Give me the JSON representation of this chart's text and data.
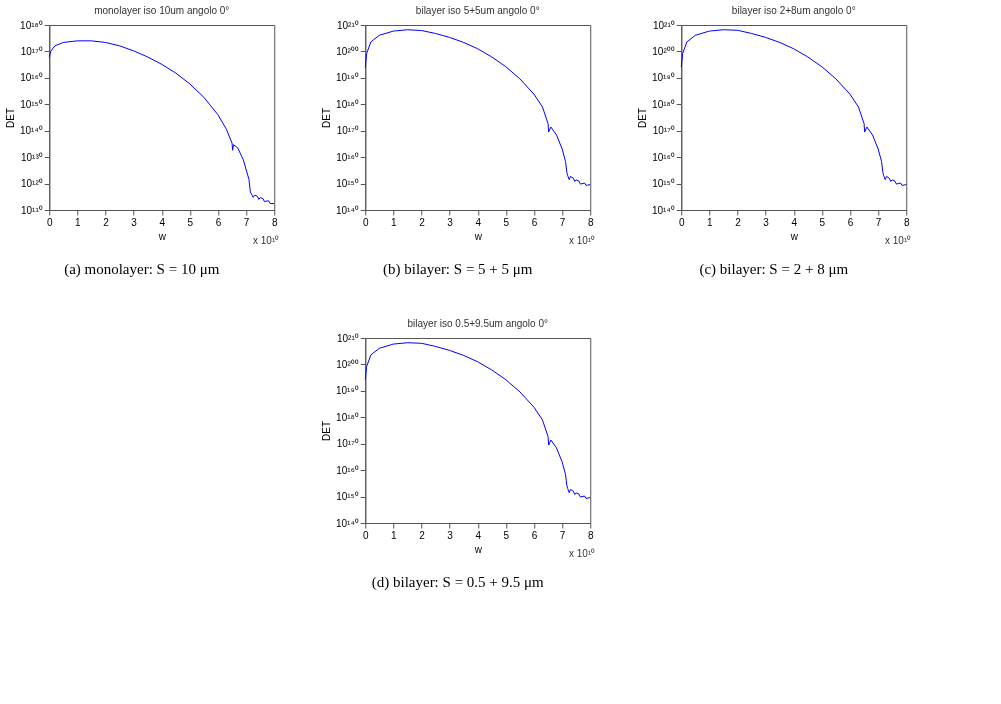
{
  "chart_data": [
    {
      "type": "line",
      "title": "monolayer iso 10um angolo 0°",
      "xlabel": "w",
      "ylabel": "DET",
      "log": "y",
      "grid": false,
      "xlim": [
        0,
        8
      ],
      "xticks": [
        0,
        1,
        2,
        3,
        4,
        5,
        6,
        7,
        8
      ],
      "ylim": [
        1e+110,
        1e+180
      ],
      "yticks": [
        {
          "value": 1e+110,
          "label": "10¹¹⁰"
        },
        {
          "value": 1e+120,
          "label": "10¹²⁰"
        },
        {
          "value": 1e+130,
          "label": "10¹³⁰"
        },
        {
          "value": 1e+140,
          "label": "10¹⁴⁰"
        },
        {
          "value": 1e+150,
          "label": "10¹⁵⁰"
        },
        {
          "value": 1e+160,
          "label": "10¹⁶⁰"
        },
        {
          "value": 1e+170,
          "label": "10¹⁷⁰"
        },
        {
          "value": 1e+180,
          "label": "10¹⁸⁰"
        }
      ],
      "annotations": [
        "x 10¹⁰",
        "(a) monolayer: S = 10 μm"
      ],
      "series": [
        {
          "color": "#0000ff",
          "x": [
            0,
            0.05,
            0.2,
            0.5,
            1,
            1.5,
            2,
            2.5,
            3,
            3.5,
            4,
            4.5,
            5,
            5.5,
            6,
            6.3,
            6.5,
            6.52,
            6.55,
            6.7,
            6.9,
            7.1,
            7.15,
            7.2,
            7.25,
            7.3,
            7.4,
            7.45,
            7.5,
            7.6,
            7.65,
            7.8,
            7.85,
            8
          ],
          "values": [
            5e+167,
            1e+170,
            1.3e+172,
            2.5e+173,
            1e+174,
            1e+174,
            2.5e+173,
            1.3e+172,
            1.6e+170,
            8e+167,
            1.3e+165,
            6.3e+161,
            5e+157,
            4e+152,
            1e+146,
            3.2e+140,
            2e+135,
            4e+132,
            5e+134,
            3.2e+133,
            1e+129,
            4e+121,
            6.3e+116,
            6.3e+115,
            6.3e+114,
            4e+115,
            1.6e+115,
            1e+114,
            5e+114,
            2e+114,
            1.6e+113,
            3.2e+113,
            3.2e+112,
            2.5e+112
          ]
        }
      ]
    },
    {
      "type": "line",
      "title": "bilayer iso 5+5um angolo 0°",
      "xlabel": "w",
      "ylabel": "DET",
      "log": "y",
      "grid": false,
      "xlim": [
        0,
        8
      ],
      "xticks": [
        0,
        1,
        2,
        3,
        4,
        5,
        6,
        7,
        8
      ],
      "ylim": [
        1e+140,
        1e+210
      ],
      "yticks": [
        {
          "value": 1e+140,
          "label": "10¹⁴⁰"
        },
        {
          "value": 1e+150,
          "label": "10¹⁵⁰"
        },
        {
          "value": 1e+160,
          "label": "10¹⁶⁰"
        },
        {
          "value": 1e+170,
          "label": "10¹⁷⁰"
        },
        {
          "value": 1e+180,
          "label": "10¹⁸⁰"
        },
        {
          "value": 1e+190,
          "label": "10¹⁹⁰"
        },
        {
          "value": 1e+200,
          "label": "10²⁰⁰"
        },
        {
          "value": 1e+210,
          "label": "10²¹⁰"
        }
      ],
      "annotations": [
        "x 10¹⁰",
        "(b) bilayer: S = 5 + 5 μm"
      ],
      "series": [
        {
          "color": "#0000ff",
          "x": [
            0,
            0.05,
            0.2,
            0.5,
            1,
            1.5,
            2,
            2.5,
            3,
            3.5,
            4,
            4.5,
            5,
            5.5,
            6,
            6.3,
            6.5,
            6.52,
            6.6,
            6.8,
            7,
            7.12,
            7.17,
            7.2,
            7.25,
            7.3,
            7.4,
            7.45,
            7.5,
            7.6,
            7.65,
            7.8,
            7.85,
            8
          ],
          "values": [
            8e+193,
            1.6e+199,
            4e+203,
            1.3e+206,
            5e+207,
            1.6e+208,
            8e+207,
            6.3e+206,
            2e+205,
            2.5e+203,
            1e+201,
            8e+197,
            1.6e+194,
            4e+189,
            6.3e+183,
            1e+179,
            5e+172,
            3.2e+169,
            2.5e+171,
            2.5e+168,
            1.3e+163,
            2.5e+158,
            1.3e+154,
            1e+153,
            3.2e+151,
            5e+152,
            1e+152,
            6.3e+150,
            2.5e+151,
            8e+150,
            6.3e+149,
            1.6e+150,
            2e+149,
            4e+149
          ]
        }
      ]
    },
    {
      "type": "line",
      "title": "bilayer iso 2+8um angolo 0°",
      "xlabel": "w",
      "ylabel": "DET",
      "log": "y",
      "grid": false,
      "xlim": [
        0,
        8
      ],
      "xticks": [
        0,
        1,
        2,
        3,
        4,
        5,
        6,
        7,
        8
      ],
      "ylim": [
        1e+140,
        1e+210
      ],
      "yticks": [
        {
          "value": 1e+140,
          "label": "10¹⁴⁰"
        },
        {
          "value": 1e+150,
          "label": "10¹⁵⁰"
        },
        {
          "value": 1e+160,
          "label": "10¹⁶⁰"
        },
        {
          "value": 1e+170,
          "label": "10¹⁷⁰"
        },
        {
          "value": 1e+180,
          "label": "10¹⁸⁰"
        },
        {
          "value": 1e+190,
          "label": "10¹⁹⁰"
        },
        {
          "value": 1e+200,
          "label": "10²⁰⁰"
        },
        {
          "value": 1e+210,
          "label": "10²¹⁰"
        }
      ],
      "annotations": [
        "x 10¹⁰",
        "(c) bilayer: S = 2 + 8 μm"
      ],
      "series": [
        {
          "color": "#0000ff",
          "x": [
            0,
            0.05,
            0.2,
            0.5,
            1,
            1.5,
            2,
            2.5,
            3,
            3.5,
            4,
            4.5,
            5,
            5.5,
            6,
            6.3,
            6.5,
            6.52,
            6.6,
            6.8,
            7,
            7.12,
            7.17,
            7.2,
            7.25,
            7.3,
            7.4,
            7.45,
            7.5,
            7.6,
            7.65,
            7.8,
            7.85,
            8
          ],
          "values": [
            1.3e+194,
            1.6e+199,
            4e+203,
            1.3e+206,
            5e+207,
            1.6e+208,
            1e+208,
            6.3e+206,
            2e+205,
            2.5e+203,
            1e+201,
            8e+197,
            1.6e+194,
            4e+189,
            6.3e+183,
            1e+179,
            5e+172,
            3.2e+169,
            2.5e+171,
            2.5e+168,
            1.3e+163,
            2.5e+158,
            1.3e+154,
            1e+153,
            3.2e+151,
            5e+152,
            1e+152,
            6.3e+150,
            2.5e+151,
            8e+150,
            6.3e+149,
            1.6e+150,
            2e+149,
            4e+149
          ]
        }
      ]
    },
    {
      "type": "line",
      "title": "bilayer iso 0.5+9.5um angolo 0°",
      "xlabel": "w",
      "ylabel": "DET",
      "log": "y",
      "grid": false,
      "xlim": [
        0,
        8
      ],
      "xticks": [
        0,
        1,
        2,
        3,
        4,
        5,
        6,
        7,
        8
      ],
      "ylim": [
        1e+140,
        1e+210
      ],
      "yticks": [
        {
          "value": 1e+140,
          "label": "10¹⁴⁰"
        },
        {
          "value": 1e+150,
          "label": "10¹⁵⁰"
        },
        {
          "value": 1e+160,
          "label": "10¹⁶⁰"
        },
        {
          "value": 1e+170,
          "label": "10¹⁷⁰"
        },
        {
          "value": 1e+180,
          "label": "10¹⁸⁰"
        },
        {
          "value": 1e+190,
          "label": "10¹⁹⁰"
        },
        {
          "value": 1e+200,
          "label": "10²⁰⁰"
        },
        {
          "value": 1e+210,
          "label": "10²¹⁰"
        }
      ],
      "annotations": [
        "x 10¹⁰",
        "(d) bilayer: S = 0.5 + 9.5 μm"
      ],
      "series": [
        {
          "color": "#0000ff",
          "x": [
            0,
            0.05,
            0.2,
            0.5,
            1,
            1.5,
            2,
            2.5,
            3,
            3.5,
            4,
            4.5,
            5,
            5.5,
            6,
            6.3,
            6.5,
            6.52,
            6.6,
            6.8,
            7,
            7.12,
            7.17,
            7.2,
            7.25,
            7.3,
            7.4,
            7.45,
            7.5,
            7.6,
            7.65,
            7.8,
            7.85,
            8
          ],
          "values": [
            2e+194,
            1.6e+199,
            4e+203,
            1.3e+206,
            5e+207,
            1.6e+208,
            1e+208,
            6.3e+206,
            2e+205,
            2.5e+203,
            1e+201,
            8e+197,
            1.6e+194,
            4e+189,
            6.3e+183,
            1e+179,
            5e+172,
            3.2e+169,
            2.5e+171,
            2.5e+168,
            1.3e+163,
            2.5e+158,
            1.3e+154,
            1e+153,
            3.2e+151,
            5e+152,
            1e+152,
            6.3e+150,
            2.5e+151,
            8e+150,
            6.3e+149,
            1.6e+150,
            2e+149,
            4e+149
          ]
        }
      ]
    }
  ]
}
